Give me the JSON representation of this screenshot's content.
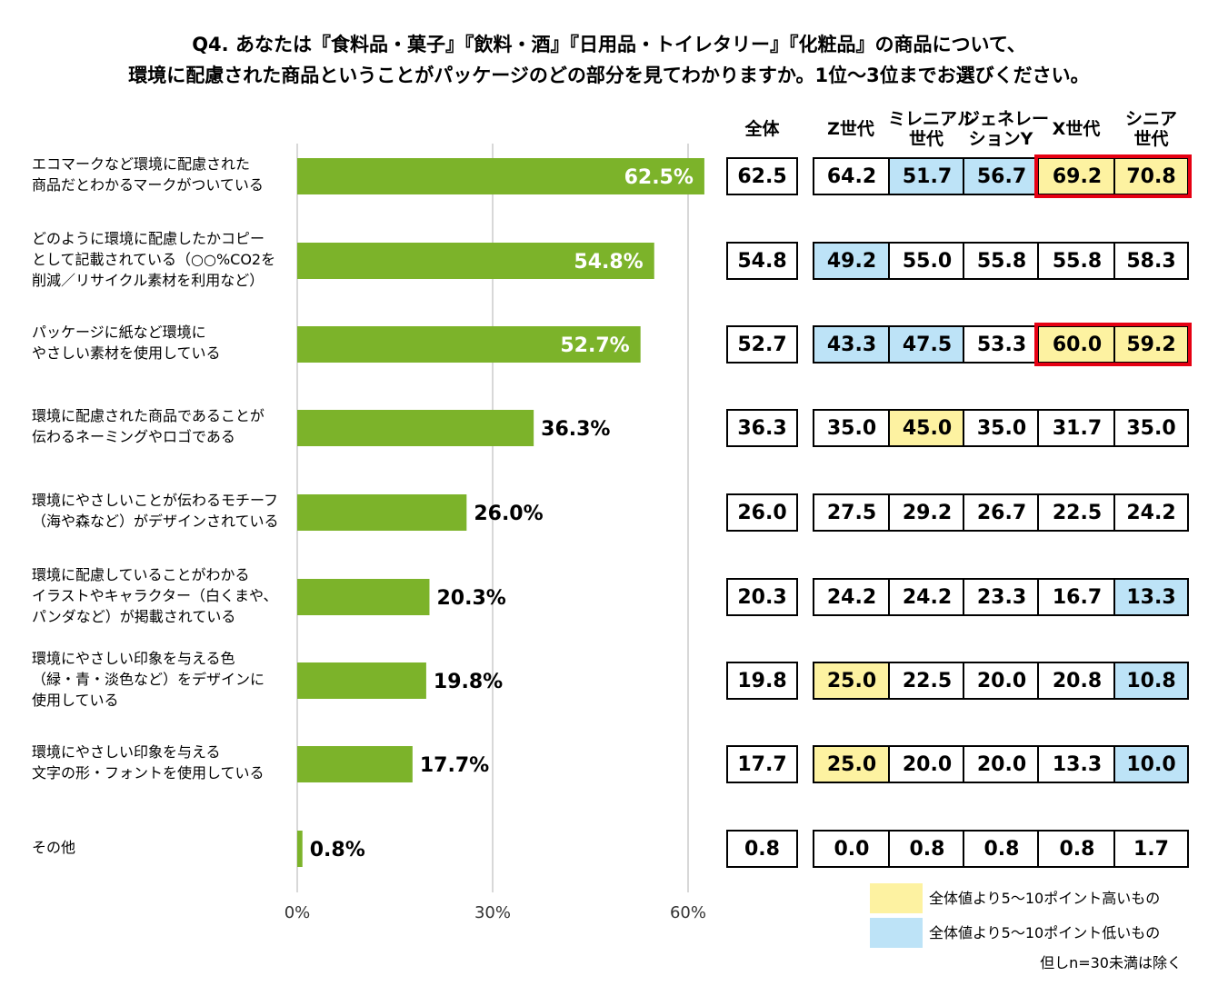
{
  "title_lines": [
    "Q4. あなたは『食料品・菓子』『飲料・酒』『日用品・トイレタリー』『化粧品』の商品について、",
    "環境に配慮された商品ということがパッケージのどの部分を見てわかりますか。1位～3位までお選びください。"
  ],
  "table_headers": [
    {
      "lines": [
        "全体"
      ]
    },
    {
      "lines": [
        "Z世代"
      ]
    },
    {
      "lines": [
        "ミレニアル",
        "世代"
      ]
    },
    {
      "lines": [
        "ジェネレー",
        "ションY"
      ]
    },
    {
      "lines": [
        "X世代"
      ]
    },
    {
      "lines": [
        "シニア",
        "世代"
      ]
    }
  ],
  "rows": [
    {
      "label_lines": [
        "エコマークなど環境に配慮された",
        "商品だとわかるマークがついている"
      ],
      "values": [
        "62.5",
        "64.2",
        "51.7",
        "56.7",
        "69.2",
        "70.8"
      ],
      "hl": [
        null,
        null,
        "low",
        "low",
        "high",
        "high"
      ],
      "red_outline": true
    },
    {
      "label_lines": [
        "どのように環境に配慮したかコピー",
        "として記載されている（○○%CO2を",
        "削減／リサイクル素材を利用など）"
      ],
      "values": [
        "54.8",
        "49.2",
        "55.0",
        "55.8",
        "55.8",
        "58.3"
      ],
      "hl": [
        null,
        "low",
        null,
        null,
        null,
        null
      ],
      "red_outline": false
    },
    {
      "label_lines": [
        "パッケージに紙など環境に",
        "やさしい素材を使用している"
      ],
      "values": [
        "52.7",
        "43.3",
        "47.5",
        "53.3",
        "60.0",
        "59.2"
      ],
      "hl": [
        null,
        "low",
        "low",
        null,
        "high",
        "high"
      ],
      "red_outline": true
    },
    {
      "label_lines": [
        "環境に配慮された商品であることが",
        "伝わるネーミングやロゴである"
      ],
      "values": [
        "36.3",
        "35.0",
        "45.0",
        "35.0",
        "31.7",
        "35.0"
      ],
      "hl": [
        null,
        null,
        "high",
        null,
        null,
        null
      ],
      "red_outline": false
    },
    {
      "label_lines": [
        "環境にやさしいことが伝わるモチーフ",
        "（海や森など）がデザインされている"
      ],
      "values": [
        "26.0",
        "27.5",
        "29.2",
        "26.7",
        "22.5",
        "24.2"
      ],
      "hl": [
        null,
        null,
        null,
        null,
        null,
        null
      ],
      "red_outline": false
    },
    {
      "label_lines": [
        "環境に配慮していることがわかる",
        "イラストやキャラクター（白くまや、",
        "パンダなど）が掲載されている"
      ],
      "values": [
        "20.3",
        "24.2",
        "24.2",
        "23.3",
        "16.7",
        "13.3"
      ],
      "hl": [
        null,
        null,
        null,
        null,
        null,
        "low"
      ],
      "red_outline": false
    },
    {
      "label_lines": [
        "環境にやさしい印象を与える色",
        "（緑・青・淡色など）をデザインに",
        "使用している"
      ],
      "values": [
        "19.8",
        "25.0",
        "22.5",
        "20.0",
        "20.8",
        "10.8"
      ],
      "hl": [
        null,
        "high",
        null,
        null,
        null,
        "low"
      ],
      "red_outline": false
    },
    {
      "label_lines": [
        "環境にやさしい印象を与える",
        "文字の形・フォントを使用している"
      ],
      "values": [
        "17.7",
        "25.0",
        "20.0",
        "20.0",
        "13.3",
        "10.0"
      ],
      "hl": [
        null,
        "high",
        null,
        null,
        null,
        "low"
      ],
      "red_outline": false
    },
    {
      "label_lines": [
        "その他"
      ],
      "values": [
        "0.8",
        "0.0",
        "0.8",
        "0.8",
        "0.8",
        "1.7"
      ],
      "hl": [
        null,
        null,
        null,
        null,
        null,
        null
      ],
      "red_outline": false
    }
  ],
  "legend": {
    "high_label": "全体値より5～10ポイント高いもの",
    "low_label": "全体値より5～10ポイント低いもの",
    "note": "但しn=30未満は除く"
  },
  "colors": {
    "bar": "#7cb32a",
    "high": "#fdf2a1",
    "low": "#bde3f7",
    "red": "#e60012",
    "grid": "#b0b0b0"
  },
  "chart_data": {
    "type": "bar",
    "orientation": "horizontal",
    "categories": [
      "エコマークなど環境に配慮された商品だとわかるマークがついている",
      "どのように環境に配慮したかコピーとして記載されている（○○%CO2を削減／リサイクル素材を利用など）",
      "パッケージに紙など環境にやさしい素材を使用している",
      "環境に配慮された商品であることが伝わるネーミングやロゴである",
      "環境にやさしいことが伝わるモチーフ（海や森など）がデザインされている",
      "環境に配慮していることがわかるイラストやキャラクター（白くまや、パンダなど）が掲載されている",
      "環境にやさしい印象を与える色（緑・青・淡色など）をデザインに使用している",
      "環境にやさしい印象を与える文字の形・フォントを使用している",
      "その他"
    ],
    "values": [
      62.5,
      54.8,
      52.7,
      36.3,
      26.0,
      20.3,
      19.8,
      17.7,
      0.8
    ],
    "value_labels": [
      "62.5%",
      "54.8%",
      "52.7%",
      "36.3%",
      "26.0%",
      "20.3%",
      "19.8%",
      "17.7%",
      "0.8%"
    ],
    "xlim": [
      0,
      60
    ],
    "xticks": [
      0,
      30,
      60
    ],
    "xtick_labels": [
      "0%",
      "30%",
      "60%"
    ],
    "grid": true,
    "legend": "none"
  }
}
